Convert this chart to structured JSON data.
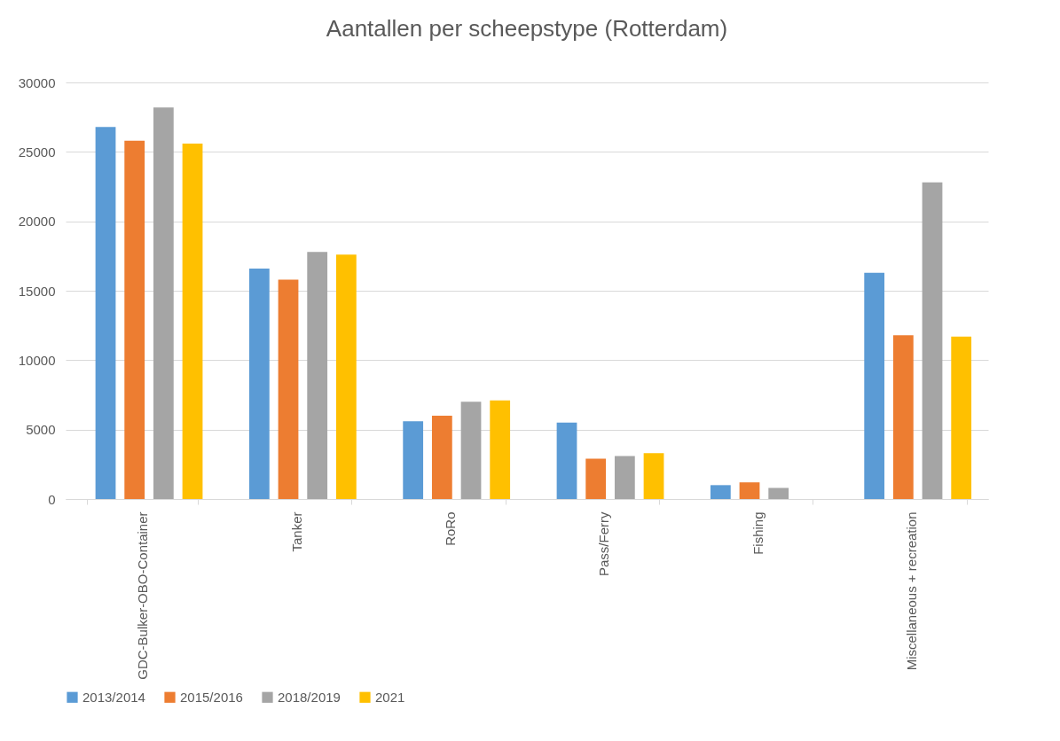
{
  "chart_data": {
    "type": "bar",
    "title": "Aantallen per scheepstype (Rotterdam)",
    "categories": [
      "GDC-Bulker-OBO-Container",
      "Tanker",
      "RoRo",
      "Pass/Ferry",
      "Fishing",
      "Miscellaneous + recreation"
    ],
    "series": [
      {
        "name": "2013/2014",
        "color": "#5b9bd5",
        "values": [
          26800,
          16600,
          5600,
          5500,
          1000,
          16300
        ]
      },
      {
        "name": "2015/2016",
        "color": "#ed7d31",
        "values": [
          25800,
          15800,
          6000,
          2900,
          1200,
          11800
        ]
      },
      {
        "name": "2018/2019",
        "color": "#a5a5a5",
        "values": [
          28200,
          17800,
          7000,
          3100,
          800,
          22800
        ]
      },
      {
        "name": "2021",
        "color": "#ffc000",
        "values": [
          25600,
          17600,
          7100,
          3300,
          null,
          11700
        ]
      }
    ],
    "ylim": [
      0,
      30000
    ],
    "yticks": [
      0,
      5000,
      10000,
      15000,
      20000,
      25000,
      30000
    ],
    "grid": "y",
    "legend": "bottom"
  }
}
